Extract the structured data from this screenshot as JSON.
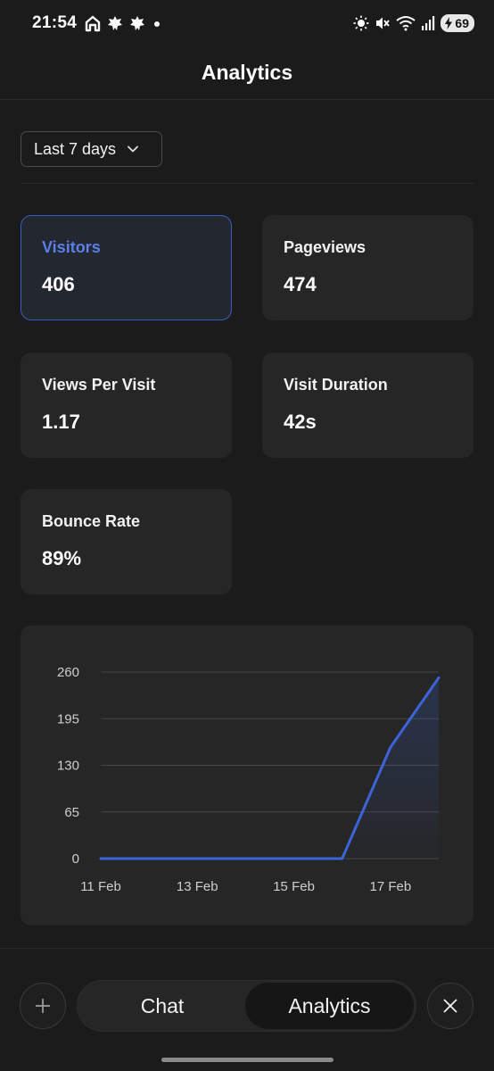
{
  "status_bar": {
    "time": "21:54",
    "battery": "69",
    "left_icons": [
      "home-icon",
      "leaf-icon",
      "leaf-icon",
      "dot-icon"
    ],
    "right_icons": [
      "brightness-icon",
      "mute-icon",
      "wifi-icon",
      "signal-icon",
      "battery-icon"
    ]
  },
  "header": {
    "title": "Analytics"
  },
  "date_range": {
    "label": "Last 7 days"
  },
  "stats": [
    {
      "label": "Visitors",
      "value": "406",
      "active": true
    },
    {
      "label": "Pageviews",
      "value": "474",
      "active": false
    },
    {
      "label": "Views Per Visit",
      "value": "1.17",
      "active": false
    },
    {
      "label": "Visit Duration",
      "value": "42s",
      "active": false
    },
    {
      "label": "Bounce Rate",
      "value": "89%",
      "active": false
    }
  ],
  "chart_data": {
    "type": "area",
    "x": [
      "11 Feb",
      "12 Feb",
      "13 Feb",
      "14 Feb",
      "15 Feb",
      "16 Feb",
      "17 Feb",
      "18 Feb"
    ],
    "x_tick_labels": [
      "11 Feb",
      "13 Feb",
      "15 Feb",
      "17 Feb"
    ],
    "series": [
      {
        "values": [
          0,
          0,
          0,
          0,
          0,
          0,
          155,
          252
        ]
      }
    ],
    "ylim": [
      0,
      260
    ],
    "y_ticks": [
      0,
      65,
      130,
      195,
      260
    ],
    "grid": true,
    "colors": {
      "line": "#3b64d8",
      "grid": "#474747",
      "axis_text": "#cfcfcf"
    }
  },
  "bottom_bar": {
    "tabs": [
      {
        "label": "Chat",
        "active": false
      },
      {
        "label": "Analytics",
        "active": true
      }
    ],
    "add_icon": "plus-icon",
    "close_icon": "close-icon"
  },
  "colors": {
    "accent": "#5b7fe8",
    "background": "#1b1b1b",
    "card": "#262626"
  }
}
